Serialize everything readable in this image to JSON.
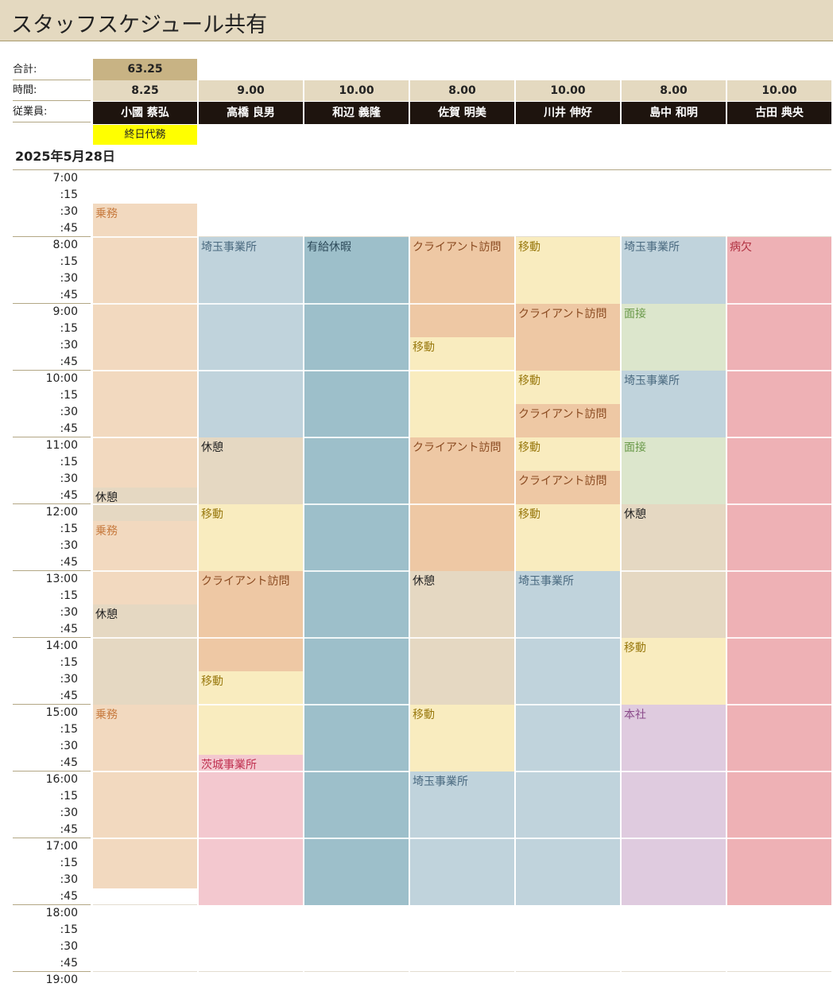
{
  "title": "スタッフスケジュール共有",
  "labels": {
    "total": "合計:",
    "hours": "時間:",
    "employee": "従業員:"
  },
  "total_value": "63.25",
  "columns": [
    {
      "hours": "8.25",
      "name": "小國 蔡弘"
    },
    {
      "hours": "9.00",
      "name": "高橋 良男"
    },
    {
      "hours": "10.00",
      "name": "和辺 義隆"
    },
    {
      "hours": "8.00",
      "name": "佐賀 明美"
    },
    {
      "hours": "10.00",
      "name": "川井 伸好"
    },
    {
      "hours": "8.00",
      "name": "島中 和明"
    },
    {
      "hours": "10.00",
      "name": "古田 典央"
    }
  ],
  "all_day_note": "終日代務",
  "date": "2025年5月28日",
  "time_labels": [
    "7:00",
    ":15",
    ":30",
    ":45",
    "8:00",
    ":15",
    ":30",
    ":45",
    "9:00",
    ":15",
    ":30",
    ":45",
    "10:00",
    ":15",
    ":30",
    ":45",
    "11:00",
    ":15",
    ":30",
    ":45",
    "12:00",
    ":15",
    ":30",
    ":45",
    "13:00",
    ":15",
    ":30",
    ":45",
    "14:00",
    ":15",
    ":30",
    ":45",
    "15:00",
    ":15",
    ":30",
    ":45",
    "16:00",
    ":15",
    ":30",
    ":45",
    "17:00",
    ":15",
    ":30",
    ":45",
    "18:00",
    ":15",
    ":30",
    ":45",
    "19:00"
  ],
  "legend": {
    "乗務": {
      "bg": "#f2d9bf",
      "fg": "#c77a3e"
    },
    "休憩": {
      "bg": "#e5d8c2",
      "fg": "#222222"
    },
    "埼玉事業所": {
      "bg": "#c0d3dc",
      "fg": "#4a6a80"
    },
    "有給休暇": {
      "bg": "#9dbfca",
      "fg": "#2d4a5a"
    },
    "クライアント訪問": {
      "bg": "#eec8a4",
      "fg": "#8a4a20"
    },
    "移動": {
      "bg": "#f9ecbf",
      "fg": "#9a7a10"
    },
    "面接": {
      "bg": "#dce6cc",
      "fg": "#6a9a4a"
    },
    "病欠": {
      "bg": "#eeb1b5",
      "fg": "#b03040"
    },
    "茨城事業所": {
      "bg": "#f3c8cf",
      "fg": "#c03050"
    },
    "本社": {
      "bg": "#dfcbdf",
      "fg": "#8a4a8a"
    }
  },
  "schedule": [
    [
      {
        "activity": "乗務",
        "label": "乗務",
        "start": "7:30",
        "end": "11:45"
      },
      {
        "activity": "休憩",
        "label": "休憩",
        "start": "11:45",
        "end": "12:15"
      },
      {
        "activity": "乗務",
        "label": "乗務",
        "start": "12:15",
        "end": "13:30"
      },
      {
        "activity": "休憩",
        "label": "休憩",
        "start": "13:30",
        "end": "15:00"
      },
      {
        "activity": "乗務",
        "label": "乗務",
        "start": "15:00",
        "end": "17:45"
      }
    ],
    [
      {
        "activity": "埼玉事業所",
        "label": "埼玉事業所",
        "start": "8:00",
        "end": "11:00"
      },
      {
        "activity": "休憩",
        "label": "休憩",
        "start": "11:00",
        "end": "12:00"
      },
      {
        "activity": "移動",
        "label": "移動",
        "start": "12:00",
        "end": "13:00"
      },
      {
        "activity": "クライアント訪問",
        "label": "クライアント訪問",
        "start": "13:00",
        "end": "14:30"
      },
      {
        "activity": "移動",
        "label": "移動",
        "start": "14:30",
        "end": "15:45"
      },
      {
        "activity": "茨城事業所",
        "label": "茨城事業所",
        "start": "15:45",
        "end": "18:00"
      }
    ],
    [
      {
        "activity": "有給休暇",
        "label": "有給休暇",
        "start": "8:00",
        "end": "18:00"
      }
    ],
    [
      {
        "activity": "クライアント訪問",
        "label": "クライアント訪問",
        "start": "8:00",
        "end": "9:30"
      },
      {
        "activity": "移動",
        "label": "移動",
        "start": "9:30",
        "end": "11:00"
      },
      {
        "activity": "クライアント訪問",
        "label": "クライアント訪問",
        "start": "11:00",
        "end": "13:00"
      },
      {
        "activity": "休憩",
        "label": "休憩",
        "start": "13:00",
        "end": "15:00"
      },
      {
        "activity": "移動",
        "label": "移動",
        "start": "15:00",
        "end": "16:00"
      },
      {
        "activity": "埼玉事業所",
        "label": "埼玉事業所",
        "start": "16:00",
        "end": "18:00"
      }
    ],
    [
      {
        "activity": "移動",
        "label": "移動",
        "start": "8:00",
        "end": "9:00"
      },
      {
        "activity": "クライアント訪問",
        "label": "クライアント訪問",
        "start": "9:00",
        "end": "10:00"
      },
      {
        "activity": "移動",
        "label": "移動",
        "start": "10:00",
        "end": "10:30"
      },
      {
        "activity": "クライアント訪問",
        "label": "クライアント訪問",
        "start": "10:30",
        "end": "11:00"
      },
      {
        "activity": "移動",
        "label": "移動",
        "start": "11:00",
        "end": "11:30"
      },
      {
        "activity": "クライアント訪問",
        "label": "クライアント訪問",
        "start": "11:30",
        "end": "12:00"
      },
      {
        "activity": "移動",
        "label": "移動",
        "start": "12:00",
        "end": "13:00"
      },
      {
        "activity": "埼玉事業所",
        "label": "埼玉事業所",
        "start": "13:00",
        "end": "18:00"
      }
    ],
    [
      {
        "activity": "埼玉事業所",
        "label": "埼玉事業所",
        "start": "8:00",
        "end": "9:00"
      },
      {
        "activity": "面接",
        "label": "面接",
        "start": "9:00",
        "end": "10:00"
      },
      {
        "activity": "埼玉事業所",
        "label": "埼玉事業所",
        "start": "10:00",
        "end": "11:00"
      },
      {
        "activity": "面接",
        "label": "面接",
        "start": "11:00",
        "end": "12:00"
      },
      {
        "activity": "休憩",
        "label": "休憩",
        "start": "12:00",
        "end": "14:00"
      },
      {
        "activity": "移動",
        "label": "移動",
        "start": "14:00",
        "end": "15:00"
      },
      {
        "activity": "本社",
        "label": "本社",
        "start": "15:00",
        "end": "18:00"
      }
    ],
    [
      {
        "activity": "病欠",
        "label": "病欠",
        "start": "8:00",
        "end": "18:00"
      }
    ]
  ]
}
